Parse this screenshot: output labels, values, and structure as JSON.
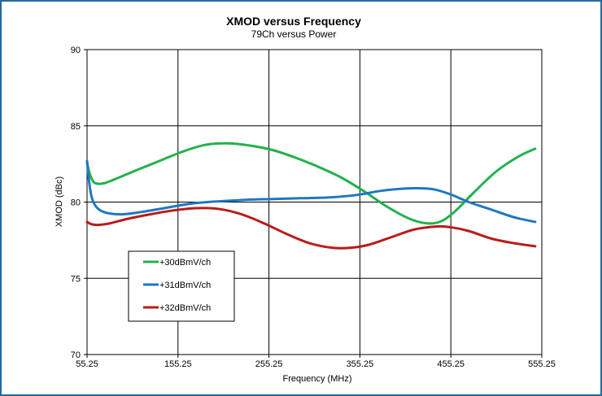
{
  "chart_data": {
    "type": "line",
    "title": "XMOD versus Frequency",
    "subtitle": "79Ch versus Power",
    "xlabel": "Frequency (MHz)",
    "ylabel": "XMOD (dBc)",
    "xlim": [
      55.25,
      555.25
    ],
    "ylim": [
      70,
      90
    ],
    "x_ticks": [
      55.25,
      155.25,
      255.25,
      355.25,
      455.25,
      555.25
    ],
    "x_tick_labels": [
      "55.25",
      "155.25",
      "255.25",
      "355.25",
      "455.25",
      "555.25"
    ],
    "y_ticks": [
      70,
      75,
      80,
      85,
      90
    ],
    "y_tick_labels": [
      "70",
      "75",
      "80",
      "85",
      "90"
    ],
    "grid": true,
    "legend_position": "lower-left",
    "series": [
      {
        "name": "+30dBmV/ch",
        "color": "#22b24c",
        "x": [
          55.25,
          58,
          62,
          67,
          75,
          90,
          110,
          135,
          160,
          185,
          210,
          235,
          260,
          285,
          310,
          335,
          360,
          385,
          410,
          430,
          445,
          460,
          480,
          505,
          530,
          548
        ],
        "y": [
          82.6,
          81.9,
          81.35,
          81.2,
          81.25,
          81.6,
          82.1,
          82.7,
          83.3,
          83.75,
          83.85,
          83.7,
          83.4,
          82.9,
          82.3,
          81.6,
          80.7,
          79.7,
          78.9,
          78.6,
          78.75,
          79.4,
          80.6,
          82.0,
          83.0,
          83.5
        ]
      },
      {
        "name": "+31dBmV/ch",
        "color": "#1f77c0",
        "x": [
          55.25,
          57,
          60,
          64,
          70,
          80,
          95,
          115,
          140,
          170,
          200,
          230,
          260,
          290,
          320,
          350,
          380,
          410,
          435,
          455,
          475,
          500,
          525,
          548
        ],
        "y": [
          82.7,
          81.6,
          80.4,
          79.8,
          79.45,
          79.25,
          79.2,
          79.35,
          79.6,
          79.9,
          80.05,
          80.15,
          80.2,
          80.25,
          80.3,
          80.45,
          80.75,
          80.9,
          80.85,
          80.5,
          80.0,
          79.5,
          79.0,
          78.7
        ]
      },
      {
        "name": "+32dBmV/ch",
        "color": "#b81c1c",
        "x": [
          55.25,
          60,
          67,
          80,
          100,
          125,
          150,
          175,
          200,
          225,
          250,
          275,
          300,
          325,
          345,
          365,
          390,
          415,
          440,
          455,
          475,
          500,
          525,
          548
        ],
        "y": [
          78.7,
          78.55,
          78.5,
          78.6,
          78.9,
          79.2,
          79.45,
          79.6,
          79.55,
          79.2,
          78.6,
          77.9,
          77.3,
          77.0,
          77.0,
          77.2,
          77.7,
          78.2,
          78.4,
          78.35,
          78.1,
          77.6,
          77.3,
          77.1
        ]
      }
    ]
  }
}
